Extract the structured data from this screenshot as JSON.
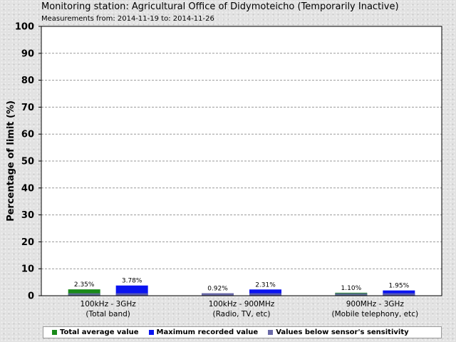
{
  "header": {
    "title": "Monitoring station: Agricultural Office of Didymoteicho (Temporarily Inactive)",
    "subtitle": "Measurements from: 2014-11-19 to: 2014-11-26"
  },
  "legend": {
    "items": [
      {
        "label": "Total average value",
        "color": "#1a8a1a"
      },
      {
        "label": "Maximum recorded value",
        "color": "#0a14f0"
      },
      {
        "label": "Values below sensor's sensitivity",
        "color": "#6a6aa8"
      }
    ]
  },
  "chart_data": {
    "type": "bar",
    "title": "Monitoring station: Agricultural Office of Didymoteicho (Temporarily Inactive)",
    "subtitle": "Measurements from: 2014-11-19 to: 2014-11-26",
    "ylabel": "Percentage of limit (%)",
    "xlabel": "",
    "ylim": [
      0,
      100
    ],
    "yticks": [
      0,
      10,
      20,
      30,
      40,
      50,
      60,
      70,
      80,
      90,
      100
    ],
    "grid": true,
    "legend_position": "bottom",
    "categories": [
      [
        "100kHz - 3GHz",
        "(Total band)"
      ],
      [
        "100kHz - 900MHz",
        "(Radio, TV, etc)"
      ],
      [
        "900MHz - 3GHz",
        "(Mobile telephony, etc)"
      ]
    ],
    "bars": [
      {
        "category": 0,
        "series": "Total average value",
        "value": 2.35,
        "label": "2.35%",
        "color": "#1a8a1a"
      },
      {
        "category": 0,
        "series": "Maximum recorded value",
        "value": 3.78,
        "label": "3.78%",
        "color": "#0a14f0"
      },
      {
        "category": 1,
        "series": "Values below sensor's sensitivity",
        "value": 0.92,
        "label": "0.92%",
        "color": "#6a6aa8"
      },
      {
        "category": 1,
        "series": "Maximum recorded value",
        "value": 2.31,
        "label": "2.31%",
        "color": "#0a14f0"
      },
      {
        "category": 2,
        "series": "Total average value",
        "value": 1.1,
        "label": "1.10%",
        "color": "#1a8a1a"
      },
      {
        "category": 2,
        "series": "Maximum recorded value",
        "value": 1.95,
        "label": "1.95%",
        "color": "#0a14f0"
      }
    ],
    "below_sensitivity_color": "#6a6aa8"
  }
}
